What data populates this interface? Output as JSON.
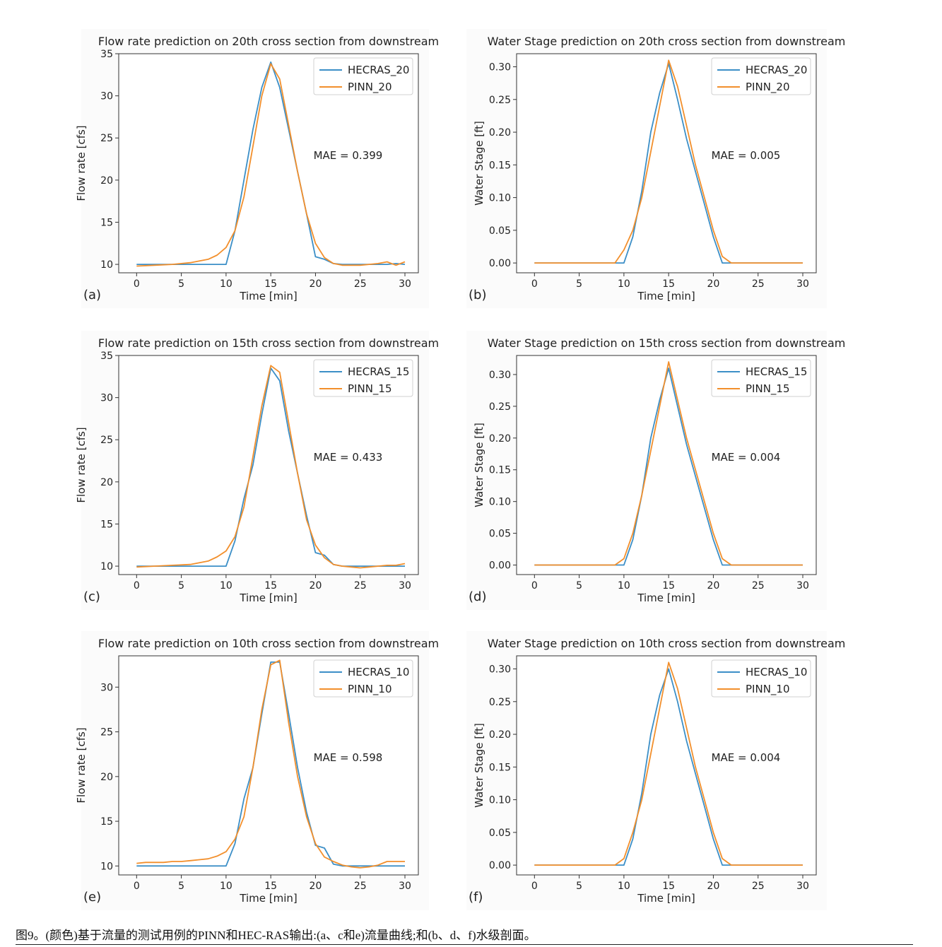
{
  "caption": "图9。(颜色)基于流量的测试用例的PINN和HEC-RAS输出:(a、c和e)流量曲线;和(b、d、f)水级剖面。",
  "colors": {
    "hecras": "#3c8fc7",
    "pinn": "#f28f2c"
  },
  "chart_data": [
    {
      "type": "line",
      "panel": "(a)",
      "title": "Flow rate prediction on 20th cross section from downstream",
      "xlabel": "Time [min]",
      "ylabel": "Flow rate [cfs]",
      "xlim": [
        -2,
        31.5
      ],
      "ylim": [
        9,
        35
      ],
      "xticks": [
        0,
        5,
        10,
        15,
        20,
        25,
        30
      ],
      "xtick_labels": [
        "0",
        "5",
        "10",
        "15",
        "20",
        "25",
        "30"
      ],
      "yticks": [
        10,
        15,
        20,
        25,
        30,
        35
      ],
      "ytick_labels": [
        "10",
        "15",
        "20",
        "25",
        "30",
        "35"
      ],
      "annotation": "MAE = 0.399",
      "legend_loc": "top-right",
      "series": [
        {
          "name": "HECRAS_20",
          "x": [
            0,
            10,
            11,
            12,
            13,
            14,
            15,
            16,
            17,
            18,
            19,
            20,
            21,
            22,
            23,
            24,
            25,
            26,
            27,
            28,
            29,
            30
          ],
          "y": [
            10,
            10,
            14,
            20,
            26,
            31,
            34,
            31,
            26,
            21,
            16,
            10.9,
            10.6,
            10.1,
            10,
            10,
            10,
            10,
            10,
            10,
            10.1,
            10
          ]
        },
        {
          "name": "PINN_20",
          "x": [
            0,
            2,
            4,
            6,
            8,
            9,
            10,
            11,
            12,
            13,
            14,
            15,
            16,
            17,
            18,
            19,
            20,
            21,
            22,
            23,
            24,
            25,
            26,
            27,
            28,
            29,
            30
          ],
          "y": [
            9.8,
            9.9,
            10,
            10.2,
            10.6,
            11.1,
            12,
            14,
            18,
            24,
            30,
            33.8,
            32,
            26.5,
            21,
            16,
            12.5,
            10.8,
            10.1,
            9.9,
            9.9,
            9.9,
            10,
            10.1,
            10.3,
            9.9,
            10.3
          ]
        }
      ]
    },
    {
      "type": "line",
      "panel": "(b)",
      "title": "Water Stage prediction on 20th cross section from downstream",
      "xlabel": "Time [min]",
      "ylabel": "Water Stage [ft]",
      "xlim": [
        -2,
        31.5
      ],
      "ylim": [
        -0.015,
        0.32
      ],
      "xticks": [
        0,
        5,
        10,
        15,
        20,
        25,
        30
      ],
      "xtick_labels": [
        "0",
        "5",
        "10",
        "15",
        "20",
        "25",
        "30"
      ],
      "yticks": [
        0,
        0.05,
        0.1,
        0.15,
        0.2,
        0.25,
        0.3
      ],
      "ytick_labels": [
        "0.00",
        "0.05",
        "0.10",
        "0.15",
        "0.20",
        "0.25",
        "0.30"
      ],
      "annotation": "MAE = 0.005",
      "legend_loc": "top-right",
      "series": [
        {
          "name": "HECRAS_20",
          "x": [
            0,
            10,
            11,
            12,
            13,
            14,
            15,
            16,
            17,
            18,
            19,
            20,
            21,
            22,
            30
          ],
          "y": [
            0,
            0,
            0.04,
            0.11,
            0.2,
            0.26,
            0.305,
            0.25,
            0.19,
            0.14,
            0.09,
            0.04,
            0,
            0,
            0
          ]
        },
        {
          "name": "PINN_20",
          "x": [
            0,
            9,
            10,
            11,
            12,
            13,
            14,
            15,
            16,
            17,
            18,
            19,
            20,
            21,
            22,
            30
          ],
          "y": [
            0,
            0,
            0.02,
            0.05,
            0.1,
            0.17,
            0.24,
            0.31,
            0.27,
            0.21,
            0.15,
            0.1,
            0.05,
            0.01,
            0,
            0
          ]
        }
      ]
    },
    {
      "type": "line",
      "panel": "(c)",
      "title": "Flow rate prediction on 15th cross section from downstream",
      "xlabel": "Time [min]",
      "ylabel": "Flow rate [cfs]",
      "xlim": [
        -2,
        31.5
      ],
      "ylim": [
        9,
        35
      ],
      "xticks": [
        0,
        5,
        10,
        15,
        20,
        25,
        30
      ],
      "xtick_labels": [
        "0",
        "5",
        "10",
        "15",
        "20",
        "25",
        "30"
      ],
      "yticks": [
        10,
        15,
        20,
        25,
        30,
        35
      ],
      "ytick_labels": [
        "10",
        "15",
        "20",
        "25",
        "30",
        "35"
      ],
      "annotation": "MAE = 0.433",
      "legend_loc": "top-right",
      "series": [
        {
          "name": "HECRAS_15",
          "x": [
            0,
            10,
            11,
            12,
            13,
            14,
            15,
            16,
            17,
            18,
            19,
            20,
            21,
            22,
            23,
            24,
            25,
            26,
            27,
            28,
            29,
            30
          ],
          "y": [
            10,
            10,
            13,
            18,
            22,
            28,
            33.5,
            32,
            26,
            21,
            16,
            11.6,
            11.3,
            10.2,
            10,
            10,
            10,
            10,
            10,
            10,
            10,
            10
          ]
        },
        {
          "name": "PINN_15",
          "x": [
            0,
            2,
            4,
            6,
            8,
            9,
            10,
            11,
            12,
            13,
            14,
            15,
            16,
            17,
            18,
            19,
            20,
            21,
            22,
            23,
            24,
            25,
            26,
            27,
            28,
            29,
            30
          ],
          "y": [
            9.9,
            10,
            10.1,
            10.2,
            10.6,
            11.1,
            11.8,
            13.5,
            17,
            23,
            29,
            33.8,
            33,
            27,
            21,
            15.5,
            12.5,
            11,
            10.2,
            10,
            9.9,
            9.8,
            9.9,
            10,
            10.1,
            10.1,
            10.3
          ]
        }
      ]
    },
    {
      "type": "line",
      "panel": "(d)",
      "title": "Water Stage prediction on 15th cross section from downstream",
      "xlabel": "Time [min]",
      "ylabel": "Water Stage [ft]",
      "xlim": [
        -2,
        31.5
      ],
      "ylim": [
        -0.015,
        0.33
      ],
      "xticks": [
        0,
        5,
        10,
        15,
        20,
        25,
        30
      ],
      "xtick_labels": [
        "0",
        "5",
        "10",
        "15",
        "20",
        "25",
        "30"
      ],
      "yticks": [
        0,
        0.05,
        0.1,
        0.15,
        0.2,
        0.25,
        0.3
      ],
      "ytick_labels": [
        "0.00",
        "0.05",
        "0.10",
        "0.15",
        "0.20",
        "0.25",
        "0.30"
      ],
      "annotation": "MAE = 0.004",
      "legend_loc": "top-right",
      "series": [
        {
          "name": "HECRAS_15",
          "x": [
            0,
            10,
            11,
            12,
            13,
            14,
            15,
            16,
            17,
            18,
            19,
            20,
            21,
            22,
            30
          ],
          "y": [
            0,
            0,
            0.04,
            0.11,
            0.2,
            0.26,
            0.31,
            0.25,
            0.19,
            0.14,
            0.09,
            0.04,
            0,
            0,
            0
          ]
        },
        {
          "name": "PINN_15",
          "x": [
            0,
            9,
            10,
            11,
            12,
            13,
            14,
            15,
            16,
            17,
            18,
            19,
            20,
            21,
            22,
            30
          ],
          "y": [
            0,
            0,
            0.01,
            0.05,
            0.11,
            0.18,
            0.25,
            0.32,
            0.26,
            0.2,
            0.15,
            0.1,
            0.05,
            0.01,
            0,
            0
          ]
        }
      ]
    },
    {
      "type": "line",
      "panel": "(e)",
      "title": "Flow rate prediction on 10th cross section from downstream",
      "xlabel": "Time [min]",
      "ylabel": "Flow rate [cfs]",
      "xlim": [
        -2,
        31.5
      ],
      "ylim": [
        9,
        33.5
      ],
      "xticks": [
        0,
        5,
        10,
        15,
        20,
        25,
        30
      ],
      "xtick_labels": [
        "0",
        "5",
        "10",
        "15",
        "20",
        "25",
        "30"
      ],
      "yticks": [
        10,
        15,
        20,
        25,
        30
      ],
      "ytick_labels": [
        "10",
        "15",
        "20",
        "25",
        "30"
      ],
      "annotation": "MAE = 0.598",
      "legend_loc": "top-right",
      "series": [
        {
          "name": "HECRAS_10",
          "x": [
            0,
            10,
            11,
            12,
            13,
            14,
            15,
            16,
            17,
            18,
            19,
            20,
            21,
            22,
            23,
            24,
            25,
            26,
            27,
            28,
            29,
            30
          ],
          "y": [
            10,
            10,
            12.5,
            17.5,
            21,
            27,
            32.8,
            32.8,
            27,
            21,
            16,
            12.3,
            12,
            10.2,
            10,
            10,
            10,
            10,
            10,
            10,
            10,
            10
          ]
        },
        {
          "name": "PINN_10",
          "x": [
            0,
            1,
            2,
            3,
            4,
            5,
            6,
            7,
            8,
            9,
            10,
            11,
            12,
            13,
            14,
            15,
            16,
            17,
            18,
            19,
            20,
            21,
            22,
            23,
            24,
            25,
            26,
            27,
            28,
            29,
            30
          ],
          "y": [
            10.3,
            10.4,
            10.4,
            10.4,
            10.5,
            10.5,
            10.6,
            10.7,
            10.8,
            11.1,
            11.6,
            13,
            15.5,
            21,
            27.5,
            32.5,
            33,
            26,
            20,
            15.5,
            12.5,
            11,
            10.5,
            10.1,
            9.9,
            9.8,
            9.9,
            10.1,
            10.5,
            10.5,
            10.5
          ]
        }
      ]
    },
    {
      "type": "line",
      "panel": "(f)",
      "title": "Water Stage prediction on 10th cross section from downstream",
      "xlabel": "Time [min]",
      "ylabel": "Water Stage [ft]",
      "xlim": [
        -2,
        31.5
      ],
      "ylim": [
        -0.015,
        0.32
      ],
      "xticks": [
        0,
        5,
        10,
        15,
        20,
        25,
        30
      ],
      "xtick_labels": [
        "0",
        "5",
        "10",
        "15",
        "20",
        "25",
        "30"
      ],
      "yticks": [
        0,
        0.05,
        0.1,
        0.15,
        0.2,
        0.25,
        0.3
      ],
      "ytick_labels": [
        "0.00",
        "0.05",
        "0.10",
        "0.15",
        "0.20",
        "0.25",
        "0.30"
      ],
      "annotation": "MAE = 0.004",
      "legend_loc": "top-right",
      "series": [
        {
          "name": "HECRAS_10",
          "x": [
            0,
            10,
            11,
            12,
            13,
            14,
            15,
            16,
            17,
            18,
            19,
            20,
            21,
            22,
            30
          ],
          "y": [
            0,
            0,
            0.04,
            0.11,
            0.2,
            0.26,
            0.3,
            0.25,
            0.19,
            0.14,
            0.09,
            0.04,
            0,
            0,
            0
          ]
        },
        {
          "name": "PINN_10",
          "x": [
            0,
            9,
            10,
            11,
            12,
            13,
            14,
            15,
            16,
            17,
            18,
            19,
            20,
            21,
            22,
            30
          ],
          "y": [
            0,
            0,
            0.01,
            0.05,
            0.1,
            0.17,
            0.24,
            0.31,
            0.27,
            0.21,
            0.15,
            0.1,
            0.05,
            0.01,
            0,
            0
          ]
        }
      ]
    }
  ]
}
